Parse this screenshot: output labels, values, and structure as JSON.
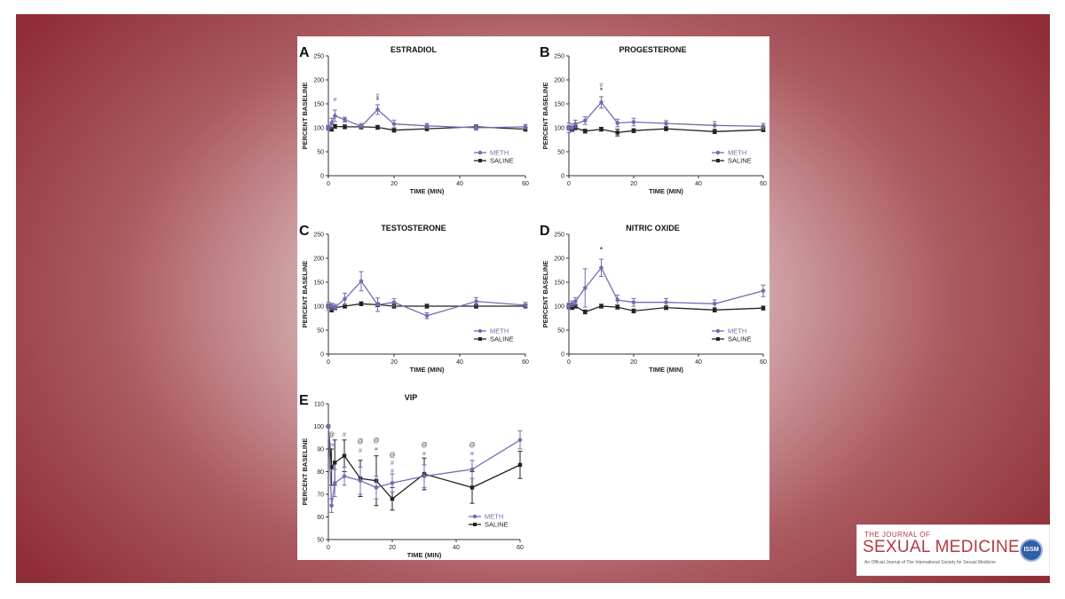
{
  "colors": {
    "meth": "#7b68b0",
    "saline": "#222222"
  },
  "journal": {
    "line1": "THE JOURNAL OF",
    "line2": "SEXUAL MEDICINE",
    "line3": "An Official Journal of The International Society for Sexual Medicine",
    "seal_icon": "issm-seal-icon"
  },
  "chart_data": [
    {
      "type": "line",
      "letter": "A",
      "title": "ESTRADIOL",
      "xlabel": "TIME (MIN)",
      "ylabel": "PERCENT BASELINE",
      "xlim": [
        0,
        60
      ],
      "ylim": [
        0,
        250
      ],
      "xticks": [
        0,
        20,
        40,
        60
      ],
      "yticks": [
        0,
        50,
        100,
        150,
        200,
        250
      ],
      "legend_position": "bottom-right",
      "series": [
        {
          "name": "METH",
          "x": [
            0,
            1,
            2,
            5,
            10,
            15,
            20,
            30,
            45,
            60
          ],
          "y": [
            100,
            110,
            125,
            117,
            103,
            138,
            108,
            104,
            100,
            102
          ],
          "err": [
            5,
            10,
            12,
            5,
            6,
            10,
            8,
            5,
            5,
            5
          ]
        },
        {
          "name": "SALINE",
          "x": [
            0,
            1,
            2,
            5,
            10,
            15,
            20,
            30,
            45,
            60
          ],
          "y": [
            100,
            97,
            103,
            102,
            102,
            101,
            95,
            98,
            102,
            97
          ],
          "err": [
            4,
            4,
            4,
            4,
            4,
            4,
            4,
            4,
            4,
            4
          ]
        }
      ],
      "annotations": [
        {
          "x": 2,
          "y": 155,
          "text": "#",
          "series": "METH"
        },
        {
          "x": 15,
          "y": 163,
          "text": "#",
          "series": "METH"
        },
        {
          "x": 15,
          "y": 152,
          "text": "*",
          "series": "SALINE"
        }
      ]
    },
    {
      "type": "line",
      "letter": "B",
      "title": "PROGESTERONE",
      "xlabel": "TIME (MIN)",
      "ylabel": "PERCENT BASELINE",
      "xlim": [
        0,
        60
      ],
      "ylim": [
        0,
        250
      ],
      "xticks": [
        0,
        20,
        40,
        60
      ],
      "yticks": [
        0,
        50,
        100,
        150,
        200,
        250
      ],
      "legend_position": "bottom-right",
      "series": [
        {
          "name": "METH",
          "x": [
            0,
            1,
            2,
            5,
            10,
            15,
            20,
            30,
            45,
            60
          ],
          "y": [
            100,
            100,
            108,
            115,
            153,
            110,
            112,
            109,
            105,
            103
          ],
          "err": [
            10,
            8,
            8,
            8,
            12,
            8,
            8,
            6,
            8,
            6
          ]
        },
        {
          "name": "SALINE",
          "x": [
            0,
            1,
            2,
            5,
            10,
            15,
            20,
            30,
            45,
            60
          ],
          "y": [
            100,
            97,
            100,
            93,
            97,
            90,
            94,
            98,
            92,
            96
          ],
          "err": [
            4,
            4,
            4,
            4,
            4,
            7,
            4,
            4,
            4,
            4
          ]
        }
      ],
      "annotations": [
        {
          "x": 10,
          "y": 185,
          "text": "#",
          "series": "METH"
        },
        {
          "x": 10,
          "y": 172,
          "text": "*",
          "series": "SALINE"
        }
      ]
    },
    {
      "type": "line",
      "letter": "C",
      "title": "TESTOSTERONE",
      "xlabel": "TIME (MIN)",
      "ylabel": "PERCENT BASELINE",
      "xlim": [
        0,
        60
      ],
      "ylim": [
        0,
        250
      ],
      "xticks": [
        0,
        20,
        40,
        60
      ],
      "yticks": [
        0,
        50,
        100,
        150,
        200,
        250
      ],
      "legend_position": "bottom-right",
      "series": [
        {
          "name": "METH",
          "x": [
            0,
            1,
            2,
            5,
            10,
            15,
            20,
            30,
            45,
            60
          ],
          "y": [
            100,
            100,
            98,
            115,
            152,
            103,
            108,
            80,
            110,
            102
          ],
          "err": [
            8,
            6,
            6,
            12,
            20,
            14,
            8,
            6,
            8,
            6
          ]
        },
        {
          "name": "SALINE",
          "x": [
            0,
            1,
            2,
            5,
            10,
            15,
            20,
            30,
            45,
            60
          ],
          "y": [
            100,
            92,
            97,
            100,
            105,
            103,
            100,
            100,
            100,
            100
          ],
          "err": [
            4,
            4,
            4,
            4,
            4,
            4,
            4,
            4,
            4,
            4
          ]
        }
      ],
      "annotations": []
    },
    {
      "type": "line",
      "letter": "D",
      "title": "NITRIC OXIDE",
      "xlabel": "TIME (MIN)",
      "ylabel": "PERCENT BASELINE",
      "xlim": [
        0,
        60
      ],
      "ylim": [
        0,
        250
      ],
      "xticks": [
        0,
        20,
        40,
        60
      ],
      "yticks": [
        0,
        50,
        100,
        150,
        200,
        250
      ],
      "legend_position": "bottom-right",
      "series": [
        {
          "name": "METH",
          "x": [
            0,
            1,
            2,
            5,
            10,
            15,
            20,
            30,
            45,
            60
          ],
          "y": [
            100,
            105,
            110,
            138,
            180,
            113,
            108,
            108,
            105,
            132
          ],
          "err": [
            6,
            6,
            8,
            40,
            18,
            10,
            8,
            8,
            8,
            12
          ]
        },
        {
          "name": "SALINE",
          "x": [
            0,
            1,
            2,
            5,
            10,
            15,
            20,
            30,
            45,
            60
          ],
          "y": [
            100,
            97,
            100,
            88,
            100,
            98,
            90,
            97,
            92,
            96
          ],
          "err": [
            4,
            4,
            4,
            4,
            4,
            4,
            4,
            4,
            4,
            4
          ]
        }
      ],
      "annotations": [
        {
          "x": 10,
          "y": 212,
          "text": "*",
          "series": "SALINE"
        }
      ]
    },
    {
      "type": "line",
      "letter": "E",
      "title": "VIP",
      "xlabel": "TIME (MIN)",
      "ylabel": "PERCENT BASELINE",
      "xlim": [
        0,
        60
      ],
      "ylim": [
        50,
        110
      ],
      "xticks": [
        0,
        20,
        40,
        60
      ],
      "yticks": [
        50,
        60,
        70,
        80,
        90,
        100,
        110
      ],
      "legend_position": "bottom-right",
      "series": [
        {
          "name": "METH",
          "x": [
            0,
            1,
            2,
            5,
            10,
            15,
            20,
            30,
            45,
            60
          ],
          "y": [
            100,
            65,
            75,
            78,
            76,
            73,
            75,
            78,
            81,
            94
          ],
          "err": [
            0,
            3,
            6,
            4,
            6,
            5,
            4,
            5,
            4,
            4
          ]
        },
        {
          "name": "SALINE",
          "x": [
            0,
            1,
            2,
            5,
            10,
            15,
            20,
            30,
            45,
            60
          ],
          "y": [
            100,
            82,
            84,
            87,
            77,
            76,
            68,
            79,
            73,
            83
          ],
          "err": [
            0,
            8,
            10,
            7,
            8,
            11,
            5,
            7,
            7,
            6
          ]
        }
      ],
      "annotations": [
        {
          "x": 1,
          "y": 91,
          "text": "##",
          "series": "METH"
        },
        {
          "x": 1,
          "y": 95.5,
          "text": "@",
          "series": "SALINE"
        },
        {
          "x": 5,
          "y": 95.5,
          "text": "#",
          "series": "METH"
        },
        {
          "x": 10,
          "y": 88.5,
          "text": "#",
          "series": "METH"
        },
        {
          "x": 10,
          "y": 92.5,
          "text": "@",
          "series": "SALINE"
        },
        {
          "x": 15,
          "y": 89,
          "text": "#",
          "series": "METH"
        },
        {
          "x": 15,
          "y": 93,
          "text": "@",
          "series": "SALINE"
        },
        {
          "x": 20,
          "y": 79.5,
          "text": "#",
          "series": "METH"
        },
        {
          "x": 20,
          "y": 83,
          "text": "#",
          "series": "METH"
        },
        {
          "x": 20,
          "y": 86.5,
          "text": "@",
          "series": "SALINE"
        },
        {
          "x": 30,
          "y": 87,
          "text": "#",
          "series": "METH"
        },
        {
          "x": 30,
          "y": 91,
          "text": "@",
          "series": "SALINE"
        },
        {
          "x": 45,
          "y": 87,
          "text": "#",
          "series": "METH"
        },
        {
          "x": 45,
          "y": 91,
          "text": "@",
          "series": "SALINE"
        }
      ]
    }
  ]
}
